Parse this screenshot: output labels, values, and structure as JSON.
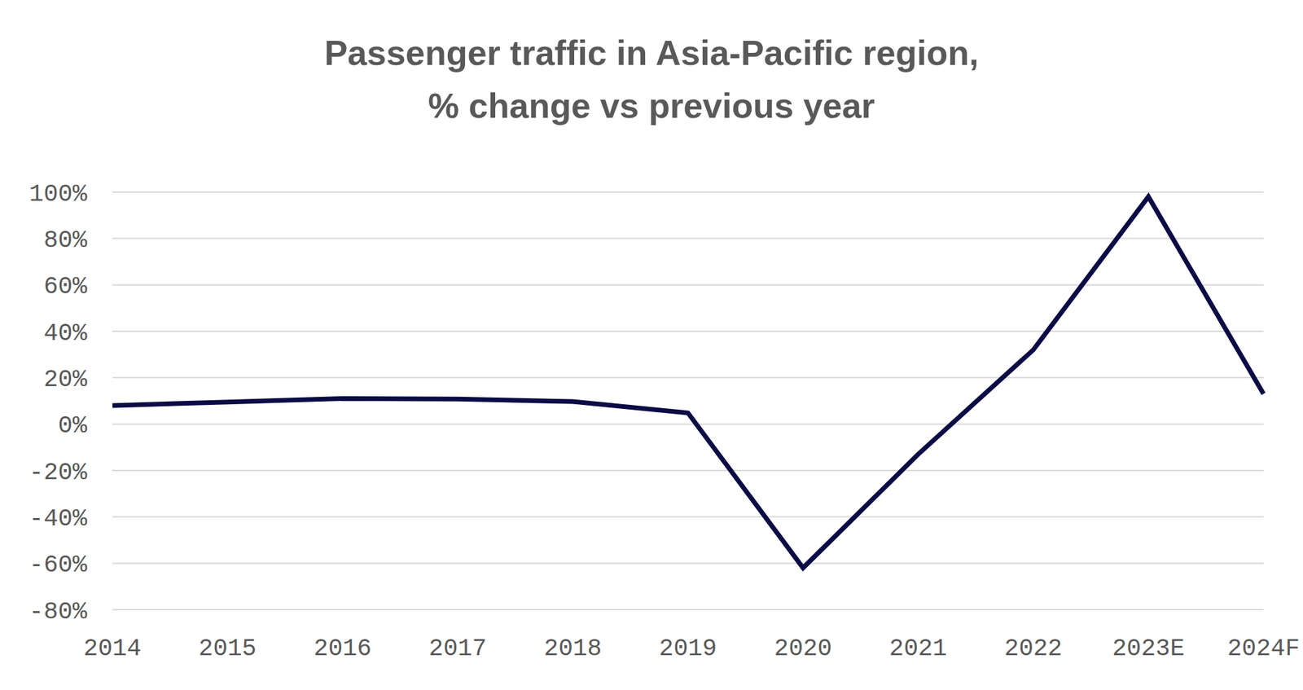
{
  "chart_data": {
    "type": "line",
    "title": "Passenger traffic in Asia-Pacific region,\n% change vs previous year",
    "categories": [
      "2014",
      "2015",
      "2016",
      "2017",
      "2018",
      "2019",
      "2020",
      "2021",
      "2022",
      "2023E",
      "2024F"
    ],
    "values": [
      8,
      9.5,
      11,
      10.8,
      9.7,
      4.8,
      -62,
      -13,
      32,
      98,
      13
    ],
    "color": "#0b0b45",
    "ylim": [
      -80,
      100
    ],
    "yticks": [
      {
        "value": -80,
        "label": "-80%"
      },
      {
        "value": -60,
        "label": "-60%"
      },
      {
        "value": -40,
        "label": "-40%"
      },
      {
        "value": -20,
        "label": "-20%"
      },
      {
        "value": 0,
        "label": "0%"
      },
      {
        "value": 20,
        "label": "20%"
      },
      {
        "value": 40,
        "label": "40%"
      },
      {
        "value": 60,
        "label": "60%"
      },
      {
        "value": 80,
        "label": "80%"
      },
      {
        "value": 100,
        "label": "100%"
      }
    ],
    "grid": true
  }
}
